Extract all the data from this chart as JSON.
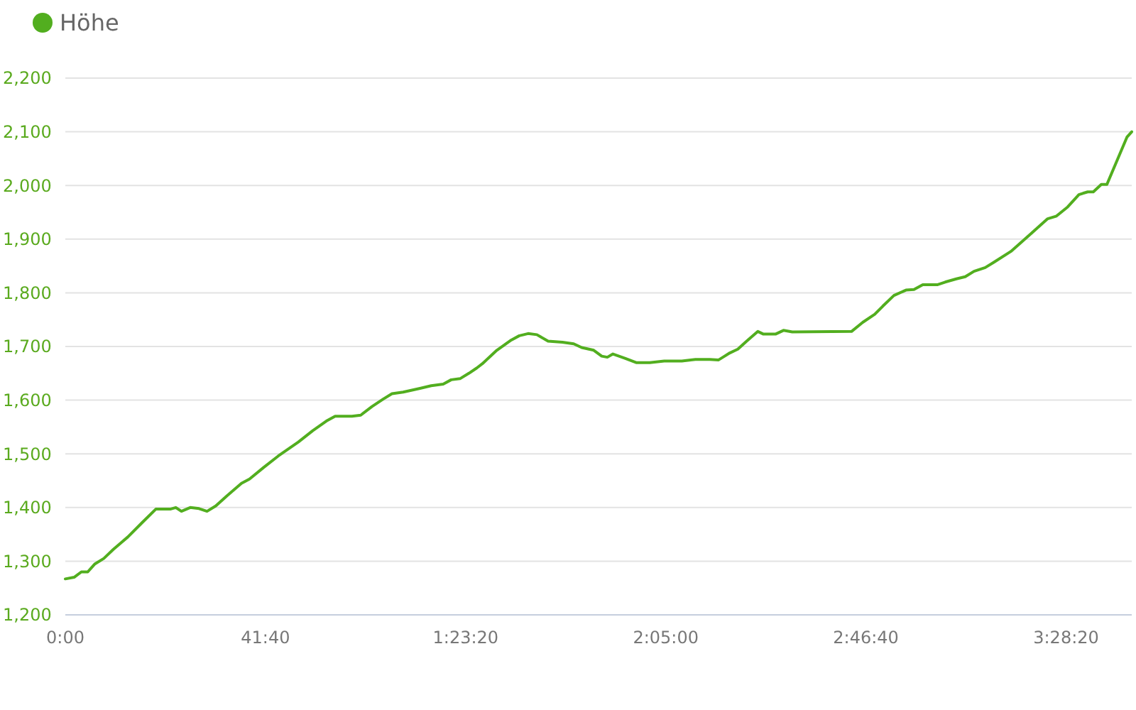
{
  "chart_data": {
    "type": "line",
    "xlim": [
      0,
      13320
    ],
    "ylim": [
      1200,
      2200
    ],
    "xticks": [
      {
        "value": 0,
        "label": "0:00"
      },
      {
        "value": 2500,
        "label": "41:40"
      },
      {
        "value": 5000,
        "label": "1:23:20"
      },
      {
        "value": 7500,
        "label": "2:05:00"
      },
      {
        "value": 10000,
        "label": "2:46:40"
      },
      {
        "value": 12500,
        "label": "3:28:20"
      }
    ],
    "yticks": [
      {
        "value": 1200,
        "label": "1,200"
      },
      {
        "value": 1300,
        "label": "1,300"
      },
      {
        "value": 1400,
        "label": "1,400"
      },
      {
        "value": 1500,
        "label": "1,500"
      },
      {
        "value": 1600,
        "label": "1,600"
      },
      {
        "value": 1700,
        "label": "1,700"
      },
      {
        "value": 1800,
        "label": "1,800"
      },
      {
        "value": 1900,
        "label": "1,900"
      },
      {
        "value": 2000,
        "label": "2,000"
      },
      {
        "value": 2100,
        "label": "2,100"
      },
      {
        "value": 2200,
        "label": "2,200"
      }
    ],
    "grid": "y",
    "legend": "top left",
    "marker": "none",
    "line_style": "solid",
    "x": [
      0,
      110,
      200,
      280,
      370,
      480,
      600,
      780,
      960,
      1130,
      1310,
      1380,
      1450,
      1560,
      1670,
      1770,
      1880,
      2020,
      2200,
      2300,
      2480,
      2660,
      2910,
      3090,
      3260,
      3370,
      3580,
      3690,
      3830,
      3970,
      4080,
      4220,
      4430,
      4570,
      4720,
      4820,
      4930,
      5040,
      5140,
      5210,
      5390,
      5570,
      5670,
      5780,
      5890,
      6030,
      6210,
      6350,
      6450,
      6600,
      6700,
      6770,
      6840,
      6990,
      7130,
      7300,
      7480,
      7700,
      7870,
      8050,
      8160,
      8300,
      8400,
      8510,
      8650,
      8720,
      8870,
      8970,
      9080,
      9820,
      9960,
      10110,
      10210,
      10350,
      10500,
      10600,
      10710,
      10890,
      10990,
      11130,
      11240,
      11350,
      11490,
      11600,
      11810,
      12060,
      12270,
      12380,
      12520,
      12660,
      12770,
      12840,
      12940,
      13010,
      13260,
      13320
    ],
    "series": [
      {
        "name": "Höhe",
        "color": "#52ae1f",
        "values": [
          1267,
          1270,
          1280,
          1280,
          1295,
          1305,
          1322,
          1345,
          1372,
          1397,
          1397,
          1400,
          1393,
          1400,
          1398,
          1393,
          1403,
          1422,
          1445,
          1453,
          1475,
          1496,
          1522,
          1543,
          1561,
          1570,
          1570,
          1572,
          1588,
          1602,
          1612,
          1615,
          1622,
          1627,
          1630,
          1638,
          1640,
          1650,
          1660,
          1668,
          1693,
          1712,
          1720,
          1724,
          1722,
          1710,
          1708,
          1705,
          1698,
          1693,
          1682,
          1680,
          1686,
          1678,
          1670,
          1670,
          1673,
          1673,
          1676,
          1676,
          1675,
          1688,
          1695,
          1710,
          1728,
          1723,
          1723,
          1730,
          1727,
          1728,
          1745,
          1760,
          1775,
          1795,
          1805,
          1806,
          1815,
          1815,
          1820,
          1826,
          1830,
          1840,
          1847,
          1857,
          1877,
          1910,
          1938,
          1943,
          1960,
          1983,
          1988,
          1988,
          2002,
          2002,
          2090,
          2100
        ]
      }
    ]
  }
}
